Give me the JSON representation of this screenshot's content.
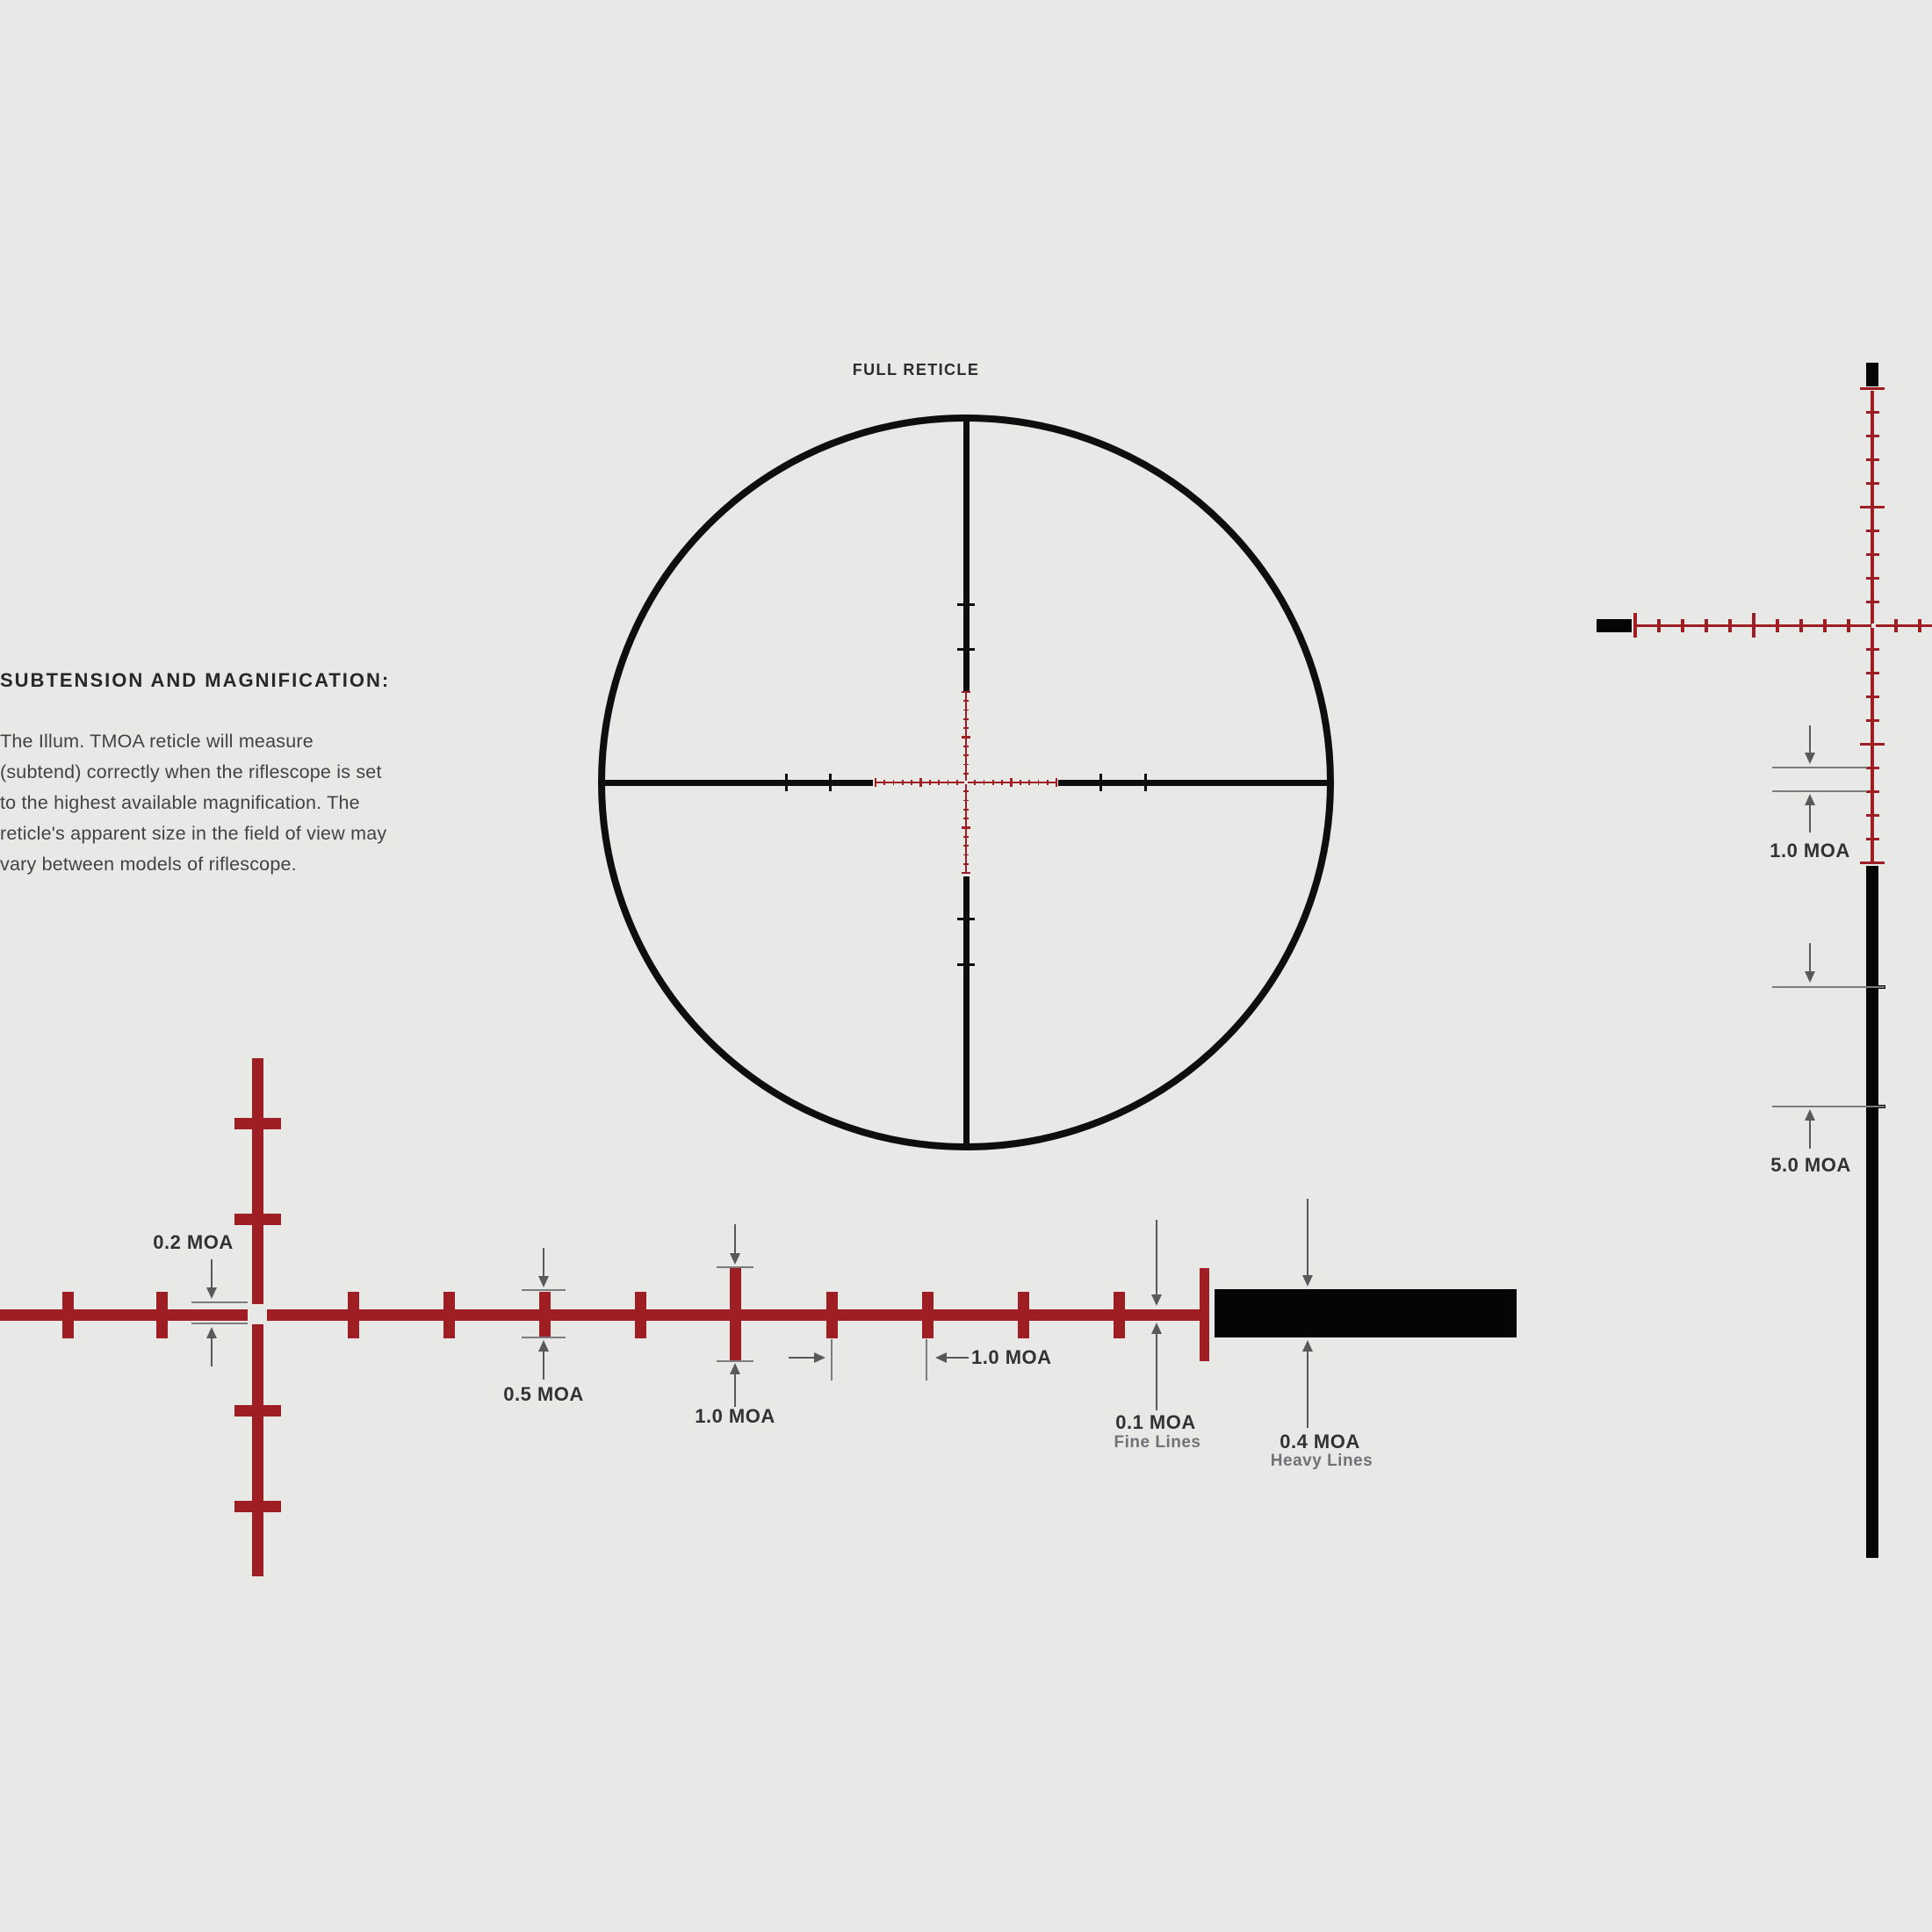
{
  "title": "FULL RETICLE",
  "section": {
    "heading": "SUBTENSION AND MAGNIFICATION:",
    "body_lines": [
      "The Illum. TMOA reticle will measure",
      "(subtend) correctly when the riflescope is set",
      "to the highest available magnification. The",
      "reticle's apparent size in the field of view may",
      "vary between models of riflescope."
    ]
  },
  "labels": {
    "center_gap": "0.2 MOA",
    "half_tick": "0.5 MOA",
    "full_tick": "1.0 MOA",
    "tick_spacing": "1.0 MOA",
    "fine_value": "0.1 MOA",
    "fine_caption": "Fine Lines",
    "heavy_value": "0.4 MOA",
    "heavy_caption": "Heavy Lines",
    "right_spacing": "1.0 MOA",
    "right_heavy": "5.0 MOA"
  },
  "colors": {
    "background": "#e8e8e6",
    "reticle_red": "#9e1e23",
    "reticle_black": "#0e0e0e",
    "heavy_black": "#050505",
    "arrow_gray": "#58595b",
    "rule_gray": "#7b7c7f",
    "label_dark": "#313236",
    "label_gray": "#717277"
  },
  "subtensions": {
    "center_gap_moa": 0.2,
    "half_tick_moa": 0.5,
    "full_tick_moa": 1.0,
    "tick_spacing_moa": 1.0,
    "fine_line_moa": 0.1,
    "heavy_line_moa": 0.4,
    "right_tick_spacing_moa": 1.0,
    "right_heavy_interval_moa": 5.0
  }
}
